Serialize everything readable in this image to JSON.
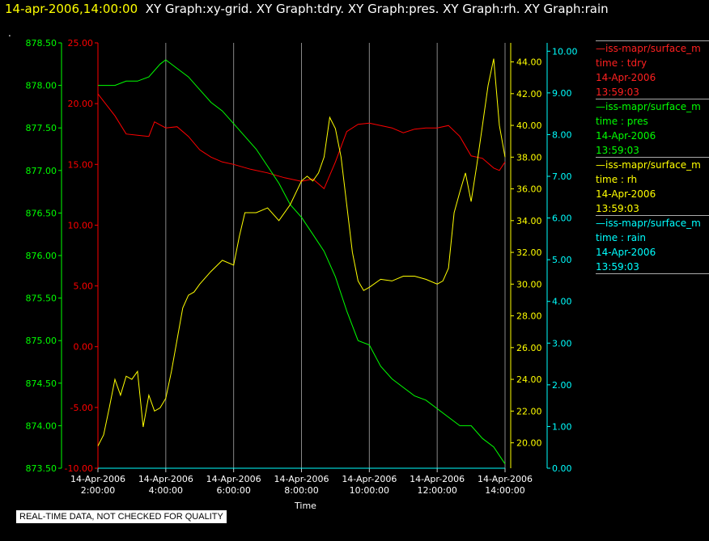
{
  "header": {
    "time": "14-apr-2006,14:00:00",
    "titles": "XY Graph:xy-grid.  XY Graph:tdry.  XY Graph:pres.  XY Graph:rh.  XY Graph:rain",
    "marker": "."
  },
  "colors": {
    "tdry": "#ff0000",
    "pres": "#00ff00",
    "rh": "#ffff00",
    "rain": "#00ffff",
    "grid": "#888888"
  },
  "legend": [
    {
      "name": "—iss-mapr/surface_m",
      "var": "time : tdry",
      "date": "14-Apr-2006",
      "time": "13:59:03",
      "color": "#ff2020"
    },
    {
      "name": "—iss-mapr/surface_m",
      "var": "time : pres",
      "date": "14-Apr-2006",
      "time": "13:59:03",
      "color": "#00ff00"
    },
    {
      "name": "—iss-mapr/surface_m",
      "var": "time : rh",
      "date": "14-Apr-2006",
      "time": "13:59:03",
      "color": "#ffff00"
    },
    {
      "name": "—iss-mapr/surface_m",
      "var": "time : rain",
      "date": "14-Apr-2006",
      "time": "13:59:03",
      "color": "#00ffff"
    }
  ],
  "disclaimer": "REAL-TIME DATA, NOT CHECKED FOR QUALITY",
  "chart_data": {
    "type": "line",
    "xlabel": "Time",
    "xlim": [
      "14-Apr-2006 02:00:00",
      "14-Apr-2006 14:00:00"
    ],
    "x_ticks": [
      {
        "date": "14-Apr-2006",
        "time": "2:00:00"
      },
      {
        "date": "14-Apr-2006",
        "time": "4:00:00"
      },
      {
        "date": "14-Apr-2006",
        "time": "6:00:00"
      },
      {
        "date": "14-Apr-2006",
        "time": "8:00:00"
      },
      {
        "date": "14-Apr-2006",
        "time": "10:00:00"
      },
      {
        "date": "14-Apr-2006",
        "time": "12:00:00"
      },
      {
        "date": "14-Apr-2006",
        "time": "14:00:00"
      }
    ],
    "grid": "vertical",
    "axes": {
      "pres": {
        "ylim": [
          873.5,
          878.5
        ],
        "ticks": [
          "873.50",
          "874.00",
          "874.50",
          "875.00",
          "875.50",
          "876.00",
          "876.50",
          "877.00",
          "877.50",
          "878.00",
          "878.50"
        ]
      },
      "tdry": {
        "ylim": [
          -10,
          25
        ],
        "ticks": [
          "-10.00",
          "-5.00",
          "0.00",
          "5.00",
          "10.00",
          "15.00",
          "20.00",
          "25.00"
        ]
      },
      "rh": {
        "ylim": [
          18.4,
          45.2
        ],
        "ticks": [
          "20.00",
          "22.00",
          "24.00",
          "26.00",
          "28.00",
          "30.00",
          "32.00",
          "34.00",
          "36.00",
          "38.00",
          "40.00",
          "42.00",
          "44.00"
        ]
      },
      "rain": {
        "ylim": [
          0,
          10.2
        ],
        "ticks": [
          "0.00",
          "1.00",
          "2.00",
          "3.00",
          "4.00",
          "5.00",
          "6.00",
          "7.00",
          "8.00",
          "9.00",
          "10.00"
        ]
      }
    },
    "series": [
      {
        "key": "tdry",
        "x": [
          "02:00",
          "02:30",
          "02:50",
          "03:10",
          "03:30",
          "03:40",
          "04:00",
          "04:20",
          "04:40",
          "05:00",
          "05:20",
          "05:40",
          "06:00",
          "06:30",
          "07:00",
          "07:30",
          "08:00",
          "08:20",
          "08:40",
          "09:00",
          "09:20",
          "09:40",
          "10:00",
          "10:20",
          "10:40",
          "11:00",
          "11:20",
          "11:40",
          "12:00",
          "12:20",
          "12:40",
          "13:00",
          "13:20",
          "13:40",
          "13:50",
          "14:00"
        ],
        "y": [
          20.8,
          19.0,
          17.5,
          17.4,
          17.3,
          18.5,
          18.0,
          18.1,
          17.3,
          16.2,
          15.6,
          15.2,
          15.0,
          14.6,
          14.3,
          13.9,
          13.6,
          13.8,
          13.0,
          15.2,
          17.7,
          18.3,
          18.4,
          18.2,
          18.0,
          17.6,
          17.9,
          18.0,
          18.0,
          18.2,
          17.3,
          15.7,
          15.5,
          14.7,
          14.5,
          15.2
        ]
      },
      {
        "key": "pres",
        "x": [
          "02:00",
          "02:30",
          "02:50",
          "03:10",
          "03:30",
          "03:50",
          "04:00",
          "04:20",
          "04:40",
          "05:00",
          "05:20",
          "05:40",
          "06:00",
          "06:20",
          "06:40",
          "07:00",
          "07:20",
          "07:40",
          "08:00",
          "08:20",
          "08:40",
          "09:00",
          "09:20",
          "09:40",
          "10:00",
          "10:20",
          "10:40",
          "11:00",
          "11:20",
          "11:40",
          "12:00",
          "12:20",
          "12:40",
          "13:00",
          "13:20",
          "13:40",
          "14:00"
        ],
        "y": [
          878.0,
          878.0,
          878.05,
          878.05,
          878.1,
          878.25,
          878.3,
          878.2,
          878.1,
          877.95,
          877.8,
          877.7,
          877.55,
          877.4,
          877.25,
          877.05,
          876.85,
          876.6,
          876.45,
          876.25,
          876.05,
          875.75,
          875.35,
          875.0,
          874.95,
          874.7,
          874.55,
          874.45,
          874.35,
          874.3,
          874.2,
          874.1,
          874.0,
          874.0,
          873.85,
          873.75,
          873.55
        ]
      },
      {
        "key": "rh",
        "x": [
          "02:00",
          "02:10",
          "02:20",
          "02:30",
          "02:40",
          "02:50",
          "03:00",
          "03:10",
          "03:20",
          "03:30",
          "03:40",
          "03:50",
          "04:00",
          "04:10",
          "04:20",
          "04:30",
          "04:40",
          "04:50",
          "05:00",
          "05:20",
          "05:40",
          "06:00",
          "06:10",
          "06:20",
          "06:40",
          "07:00",
          "07:20",
          "07:40",
          "08:00",
          "08:10",
          "08:20",
          "08:30",
          "08:40",
          "08:50",
          "09:00",
          "09:10",
          "09:20",
          "09:30",
          "09:40",
          "09:50",
          "10:00",
          "10:20",
          "10:40",
          "11:00",
          "11:20",
          "11:40",
          "12:00",
          "12:10",
          "12:20",
          "12:30",
          "12:40",
          "12:50",
          "13:00",
          "13:10",
          "13:20",
          "13:30",
          "13:40",
          "13:50",
          "14:00"
        ],
        "y": [
          19.8,
          20.5,
          22.2,
          24.0,
          23.0,
          24.2,
          24.0,
          24.5,
          21.0,
          23.0,
          22.0,
          22.2,
          22.8,
          24.5,
          26.5,
          28.5,
          29.3,
          29.5,
          30.0,
          30.8,
          31.5,
          31.2,
          33.0,
          34.5,
          34.5,
          34.8,
          34.0,
          35.0,
          36.5,
          36.8,
          36.5,
          37.0,
          38.0,
          40.5,
          39.8,
          38.0,
          35.0,
          32.0,
          30.2,
          29.6,
          29.8,
          30.3,
          30.2,
          30.5,
          30.5,
          30.3,
          30.0,
          30.2,
          31.0,
          34.5,
          35.8,
          37.0,
          35.2,
          37.5,
          40.0,
          42.5,
          44.2,
          40.0,
          38.0
        ]
      },
      {
        "key": "rain",
        "x": [
          "02:00",
          "14:00"
        ],
        "y": [
          0.0,
          0.0
        ]
      }
    ]
  }
}
